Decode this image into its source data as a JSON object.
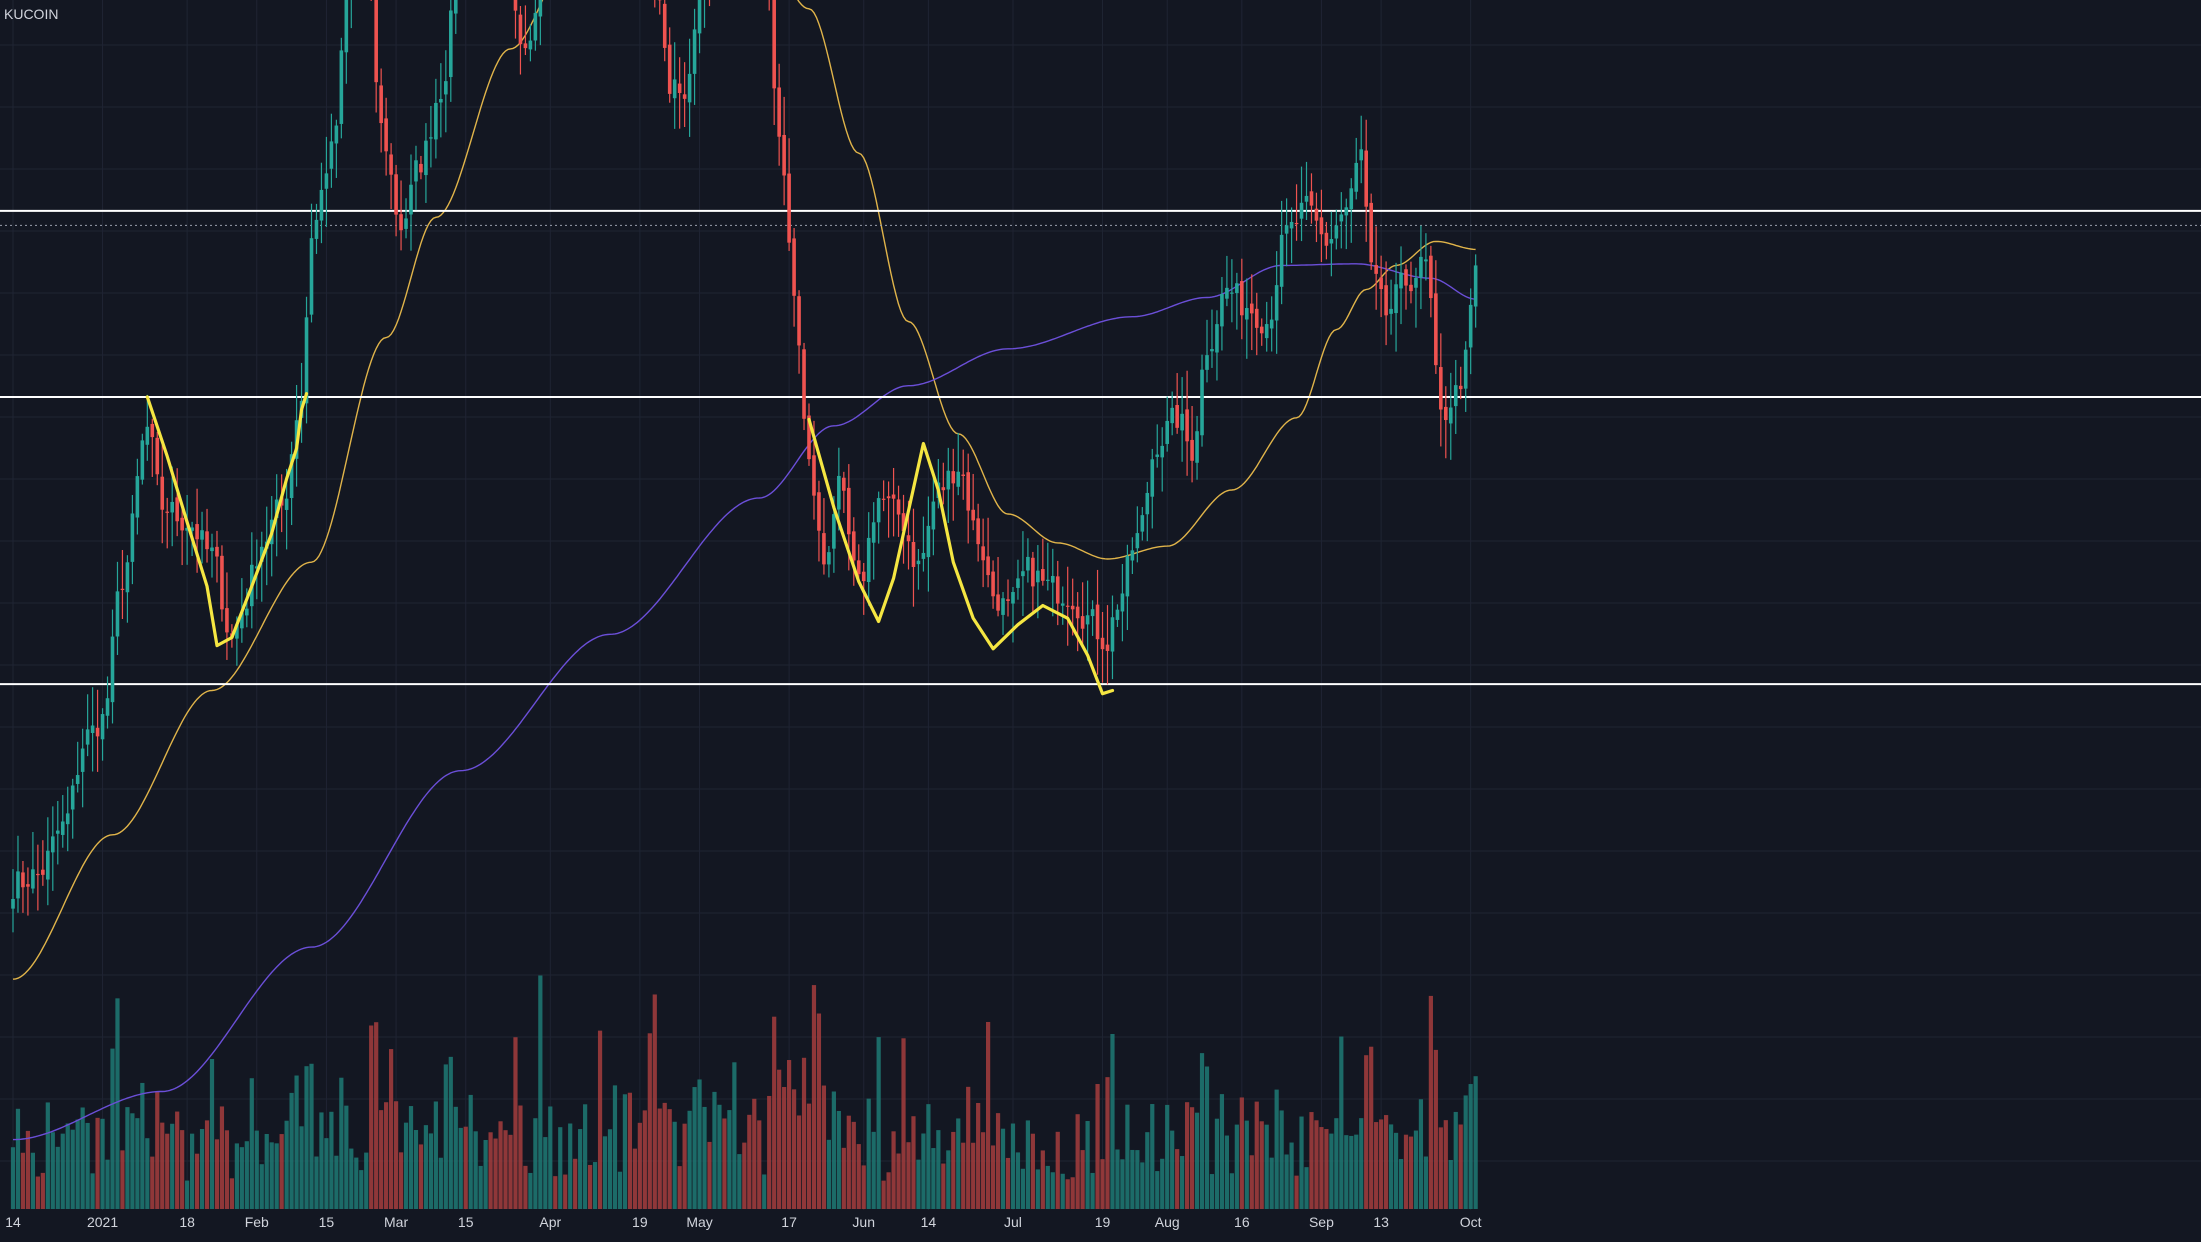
{
  "exchange": "KUCOIN",
  "colors": {
    "background": "#131722",
    "grid": "#1f2433",
    "up": "#26a69a",
    "down": "#ef5350",
    "up_volume": "#1f7a74",
    "down_volume": "#a63d3d",
    "ma_short": "#e0b44a",
    "ma_long": "#6b4fd8",
    "levels": "#ffffff",
    "pattern": "#f5e642",
    "axis_text": "#d1d4dc"
  },
  "chart_data": {
    "type": "candlestick",
    "title": "",
    "xlabel": "",
    "ylabel": "",
    "x_tick_labels": [
      {
        "label": "14",
        "day": 0
      },
      {
        "label": "2021",
        "day": 18
      },
      {
        "label": "18",
        "day": 35
      },
      {
        "label": "Feb",
        "day": 49
      },
      {
        "label": "15",
        "day": 63
      },
      {
        "label": "Mar",
        "day": 77
      },
      {
        "label": "15",
        "day": 91
      },
      {
        "label": "Apr",
        "day": 108
      },
      {
        "label": "19",
        "day": 126
      },
      {
        "label": "May",
        "day": 138
      },
      {
        "label": "17",
        "day": 156
      },
      {
        "label": "Jun",
        "day": 171
      },
      {
        "label": "14",
        "day": 184
      },
      {
        "label": "Jul",
        "day": 201
      },
      {
        "label": "19",
        "day": 219
      },
      {
        "label": "Aug",
        "day": 232
      },
      {
        "label": "16",
        "day": 247
      },
      {
        "label": "Sep",
        "day": 263
      },
      {
        "label": "13",
        "day": 275
      },
      {
        "label": "Oct",
        "day": 293
      }
    ],
    "price_anchors": [
      [
        0,
        25.9
      ],
      [
        5,
        26.5
      ],
      [
        10,
        29.5
      ],
      [
        15,
        35.2
      ],
      [
        18,
        36.2
      ],
      [
        22,
        45.0
      ],
      [
        27,
        54.3
      ],
      [
        30,
        49.5
      ],
      [
        35,
        48.5
      ],
      [
        40,
        46.5
      ],
      [
        44,
        41.2
      ],
      [
        46,
        43.0
      ],
      [
        50,
        47.2
      ],
      [
        54,
        49.5
      ],
      [
        58,
        56.3
      ],
      [
        60,
        66.5
      ],
      [
        64,
        71.5
      ],
      [
        68,
        83.0
      ],
      [
        71,
        85.0
      ],
      [
        74,
        73.0
      ],
      [
        78,
        67.0
      ],
      [
        82,
        71.0
      ],
      [
        86,
        75.5
      ],
      [
        90,
        83.5
      ],
      [
        94,
        88.0
      ],
      [
        98,
        85.0
      ],
      [
        103,
        78.5
      ],
      [
        108,
        86.0
      ],
      [
        113,
        87.5
      ],
      [
        118,
        89.5
      ],
      [
        123,
        95.5
      ],
      [
        126,
        92.5
      ],
      [
        129,
        83.5
      ],
      [
        132,
        76.0
      ],
      [
        135,
        74.5
      ],
      [
        138,
        82.0
      ],
      [
        143,
        85.5
      ],
      [
        147,
        86.0
      ],
      [
        151,
        83.5
      ],
      [
        154,
        73.0
      ],
      [
        157,
        62.5
      ],
      [
        160,
        52.0
      ],
      [
        163,
        46.0
      ],
      [
        166,
        50.5
      ],
      [
        170,
        44.5
      ],
      [
        174,
        50.0
      ],
      [
        178,
        49.0
      ],
      [
        182,
        45.8
      ],
      [
        186,
        50.5
      ],
      [
        190,
        52.0
      ],
      [
        194,
        47.5
      ],
      [
        197,
        44.0
      ],
      [
        200,
        43.0
      ],
      [
        204,
        45.5
      ],
      [
        208,
        44.5
      ],
      [
        212,
        44.0
      ],
      [
        216,
        42.5
      ],
      [
        220,
        41.0
      ],
      [
        222,
        43.5
      ],
      [
        226,
        47.5
      ],
      [
        230,
        53.5
      ],
      [
        234,
        55.0
      ],
      [
        237,
        53.0
      ],
      [
        240,
        59.5
      ],
      [
        244,
        63.0
      ],
      [
        248,
        62.0
      ],
      [
        252,
        61.0
      ],
      [
        256,
        66.5
      ],
      [
        260,
        68.0
      ],
      [
        264,
        66.0
      ],
      [
        268,
        68.0
      ],
      [
        271,
        71.5
      ],
      [
        273,
        64.0
      ],
      [
        276,
        61.5
      ],
      [
        280,
        63.5
      ],
      [
        284,
        64.5
      ],
      [
        287,
        55.0
      ],
      [
        290,
        56.5
      ],
      [
        292,
        58.5
      ],
      [
        294,
        64.5
      ]
    ],
    "ma_short_anchors": [
      [
        0,
        20.0
      ],
      [
        20,
        29.0
      ],
      [
        40,
        38.0
      ],
      [
        60,
        46.0
      ],
      [
        75,
        60.0
      ],
      [
        85,
        67.5
      ],
      [
        100,
        78.0
      ],
      [
        112,
        83.5
      ],
      [
        122,
        86.5
      ],
      [
        135,
        87.5
      ],
      [
        148,
        86.5
      ],
      [
        160,
        80.5
      ],
      [
        170,
        71.5
      ],
      [
        180,
        61.0
      ],
      [
        190,
        54.0
      ],
      [
        200,
        49.0
      ],
      [
        210,
        47.2
      ],
      [
        220,
        46.2
      ],
      [
        232,
        47.0
      ],
      [
        245,
        50.5
      ],
      [
        258,
        55.0
      ],
      [
        266,
        60.5
      ],
      [
        272,
        63.0
      ],
      [
        278,
        64.5
      ],
      [
        286,
        66.0
      ],
      [
        294,
        65.5
      ]
    ],
    "ma_long_anchors": [
      [
        0,
        10.0
      ],
      [
        30,
        13.0
      ],
      [
        60,
        22.0
      ],
      [
        90,
        33.0
      ],
      [
        120,
        41.5
      ],
      [
        150,
        50.0
      ],
      [
        165,
        54.5
      ],
      [
        180,
        57.0
      ],
      [
        200,
        59.3
      ],
      [
        225,
        61.3
      ],
      [
        240,
        62.5
      ],
      [
        255,
        64.5
      ],
      [
        270,
        64.6
      ],
      [
        285,
        63.7
      ],
      [
        294,
        62.4
      ]
    ],
    "levels": [
      67.9,
      56.3,
      38.4
    ],
    "dotted_level": 67.0,
    "pattern_left": [
      [
        27,
        56.3
      ],
      [
        31,
        52.6
      ],
      [
        35,
        48.5
      ],
      [
        39,
        44.5
      ],
      [
        41,
        40.8
      ],
      [
        44,
        41.3
      ],
      [
        48,
        44.5
      ],
      [
        52,
        47.8
      ],
      [
        55,
        51.2
      ],
      [
        57,
        53.1
      ],
      [
        58,
        55.5
      ],
      [
        59,
        56.5
      ]
    ],
    "pattern_right": [
      [
        160,
        54.9
      ],
      [
        165,
        49.4
      ],
      [
        170,
        44.8
      ],
      [
        174,
        42.3
      ],
      [
        177,
        45.0
      ],
      [
        180,
        49.2
      ],
      [
        183,
        53.4
      ],
      [
        186,
        50.5
      ],
      [
        189,
        46.0
      ],
      [
        193,
        42.5
      ],
      [
        197,
        40.6
      ],
      [
        202,
        42.1
      ],
      [
        207,
        43.3
      ],
      [
        212,
        42.5
      ],
      [
        216,
        40.2
      ],
      [
        219,
        37.8
      ],
      [
        221,
        38.0
      ]
    ],
    "volume_seed": 7,
    "grid": true
  }
}
